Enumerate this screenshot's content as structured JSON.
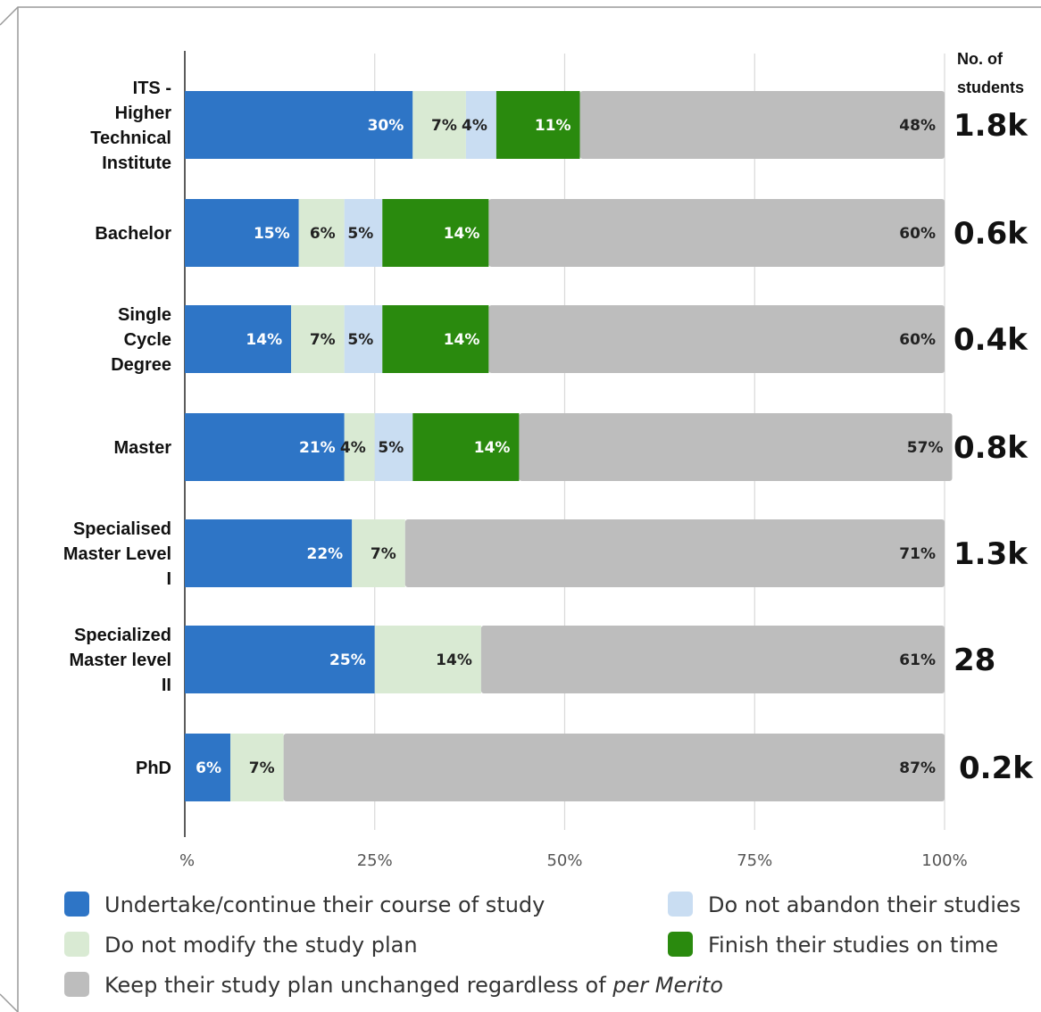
{
  "chart_data": {
    "type": "bar",
    "orientation": "horizontal",
    "stacked": true,
    "categories": [
      "ITS - Higher Technical Institute",
      "Bachelor",
      "Single Cycle Degree",
      "Master",
      "Specialised Master Level I",
      "Specialized Master level II",
      "PhD"
    ],
    "category_lines": [
      [
        "ITS -",
        "Higher",
        "Technical",
        "Institute"
      ],
      [
        "Bachelor"
      ],
      [
        "Single",
        "Cycle",
        "Degree"
      ],
      [
        "Master"
      ],
      [
        "Specialised",
        "Master Level",
        "I"
      ],
      [
        "Specialized",
        "Master level",
        "II"
      ],
      [
        "PhD"
      ]
    ],
    "series": [
      {
        "name": "Undertake/continue their course of study",
        "color": "#2E75C6",
        "label_color": "#ffffff",
        "values": [
          30,
          15,
          14,
          21,
          22,
          25,
          6
        ]
      },
      {
        "name": "Do not modify the study plan",
        "color": "#D9EAD3",
        "label_color": "#222222",
        "values": [
          7,
          6,
          7,
          4,
          7,
          14,
          7
        ]
      },
      {
        "name": "Do not abandon their studies",
        "color": "#C9DDF2",
        "label_color": "#222222",
        "values": [
          4,
          5,
          5,
          5,
          null,
          null,
          null
        ]
      },
      {
        "name": "Finish their studies on time",
        "color": "#2A8A0E",
        "label_color": "#ffffff",
        "values": [
          11,
          14,
          14,
          14,
          null,
          null,
          null
        ]
      },
      {
        "name": "Keep their study plan unchanged regardless of per Merito",
        "color": "#BDBDBD",
        "label_color": "#222222",
        "values": [
          48,
          60,
          60,
          57,
          71,
          61,
          87
        ]
      }
    ],
    "x_ticks": [
      "%",
      "25%",
      "50%",
      "75%",
      "100%"
    ],
    "xlim": [
      0,
      100
    ],
    "grid": true,
    "count_header": [
      "No. of",
      "students"
    ],
    "student_counts": [
      "1.8k",
      "0.6k",
      "0.4k",
      "0.8k",
      "1.3k",
      "28",
      "0.2k"
    ],
    "legend": {
      "placement": "bottom",
      "items": [
        {
          "text": "Undertake/continue their course of study",
          "color": "#2E75C6"
        },
        {
          "text": "Do not abandon their studies",
          "color": "#C9DDF2"
        },
        {
          "text": "Do not modify the study plan",
          "color": "#D9EAD3"
        },
        {
          "text": "Finish their studies on time",
          "color": "#2A8A0E"
        },
        {
          "text": "Keep their study plan unchanged regardless of ",
          "italic_suffix": "per Merito",
          "color": "#BDBDBD"
        }
      ]
    }
  }
}
